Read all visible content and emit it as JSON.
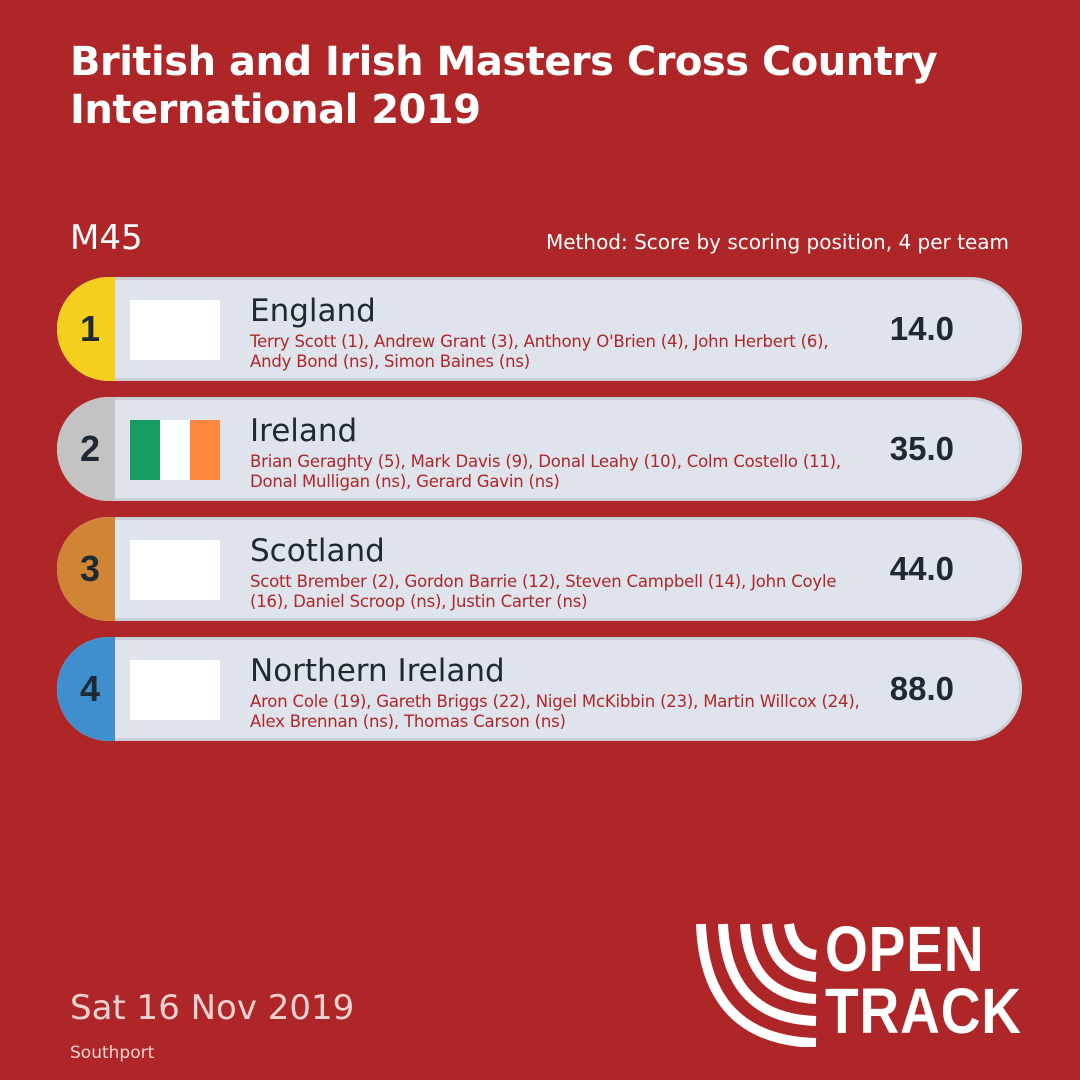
{
  "header": {
    "title_line1": "British and Irish Masters Cross Country",
    "title_line2": "International 2019",
    "category": "M45",
    "method": "Method: Score by scoring position, 4 per team"
  },
  "results": [
    {
      "position": "1",
      "team": "England",
      "members": "Terry Scott (1), Andrew Grant (3), Anthony O'Brien (4), John Herbert (6), Andy Bond (ns), Simon Baines (ns)",
      "score": "14.0",
      "flag": "blank",
      "badge_color": "#f5cf1d"
    },
    {
      "position": "2",
      "team": "Ireland",
      "members": "Brian Geraghty (5), Mark Davis (9), Donal Leahy (10), Colm Costello (11), Donal Mulligan (ns), Gerard Gavin (ns)",
      "score": "35.0",
      "flag": "ireland-flag",
      "flag_colors": [
        "#169b62",
        "#ffffff",
        "#ff883e"
      ],
      "badge_color": "#c3c3c3"
    },
    {
      "position": "3",
      "team": "Scotland",
      "members": "Scott Brember (2), Gordon Barrie (12), Steven Campbell (14), John Coyle (16), Daniel Scroop (ns), Justin Carter (ns)",
      "score": "44.0",
      "flag": "blank",
      "badge_color": "#d08535"
    },
    {
      "position": "4",
      "team": "Northern Ireland",
      "members": "Aron Cole (19), Gareth Briggs (22), Nigel McKibbin (23), Martin Willcox (24), Alex Brennan (ns), Thomas Carson (ns)",
      "score": "88.0",
      "flag": "blank",
      "badge_color": "#3f8fce"
    }
  ],
  "footer": {
    "date": "Sat 16 Nov 2019",
    "venue": "Southport",
    "logo_line1": "OPEN",
    "logo_line2": "TRACK"
  },
  "colors": {
    "background": "#ae2628",
    "row_background": "#dfe4ec",
    "text_dark": "#1f2933"
  }
}
